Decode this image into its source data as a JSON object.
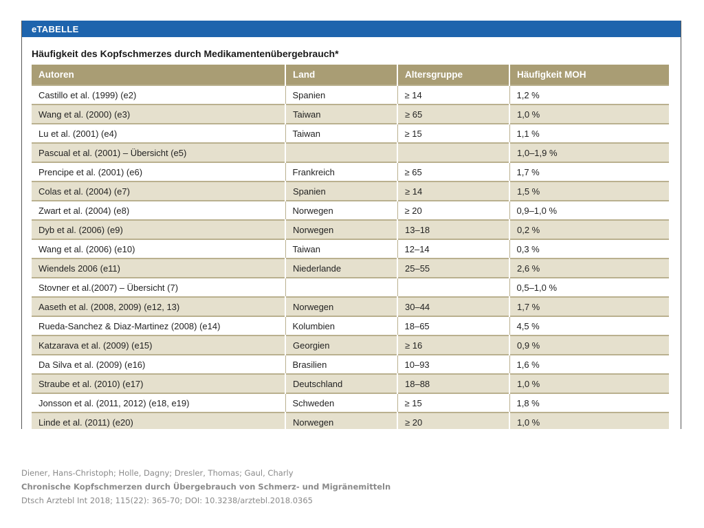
{
  "banner": "eTABELLE",
  "table_title": "Häufigkeit des Kopfschmerzes durch Medikamentenübergebrauch*",
  "columns": [
    "Autoren",
    "Land",
    "Altersgruppe",
    "Häufigkeit MOH"
  ],
  "rows": [
    [
      "Castillo et al. (1999) (e2)",
      "Spanien",
      "≥ 14",
      "1,2 %"
    ],
    [
      "Wang et al. (2000) (e3)",
      "Taiwan",
      "≥ 65",
      "1,0 %"
    ],
    [
      "Lu et al. (2001) (e4)",
      "Taiwan",
      "≥ 15",
      "1,1 %"
    ],
    [
      "Pascual et al. (2001) – Übersicht (e5)",
      "",
      "",
      "1,0–1,9 %"
    ],
    [
      "Prencipe et al. (2001) (e6)",
      "Frankreich",
      "≥ 65",
      "1,7 %"
    ],
    [
      "Colas et al. (2004) (e7)",
      "Spanien",
      "≥ 14",
      "1,5 %"
    ],
    [
      "Zwart et al. (2004) (e8)",
      "Norwegen",
      "≥ 20",
      "0,9–1,0 %"
    ],
    [
      "Dyb et al. (2006) (e9)",
      "Norwegen",
      "13–18",
      "0,2 %"
    ],
    [
      "Wang et al. (2006) (e10)",
      "Taiwan",
      "12–14",
      "0,3 %"
    ],
    [
      "Wiendels 2006 (e11)",
      "Niederlande",
      "25–55",
      "2,6 %"
    ],
    [
      "Stovner et al.(2007) – Übersicht (7)",
      "",
      "",
      "0,5–1,0 %"
    ],
    [
      "Aaseth et al. (2008, 2009) (e12, 13)",
      "Norwegen",
      "30–44",
      "1,7 %"
    ],
    [
      "Rueda-Sanchez & Diaz-Martinez (2008) (e14)",
      "Kolumbien",
      "18–65",
      "4,5 %"
    ],
    [
      "Katzarava et al. (2009) (e15)",
      "Georgien",
      "≥ 16",
      "0,9 %"
    ],
    [
      "Da Silva et al. (2009) (e16)",
      "Brasilien",
      "10–93",
      "1,6 %"
    ],
    [
      "Straube et al. (2010) (e17)",
      "Deutschland",
      "18–88",
      "1,0 %"
    ],
    [
      "Jonsson et al. (2011, 2012) (e18, e19)",
      "Schweden",
      "≥ 15",
      "1,8 %"
    ],
    [
      "Linde et al. (2011) (e20)",
      "Norwegen",
      "≥ 20",
      "1,0 %"
    ]
  ],
  "citation": {
    "authors": "Diener, Hans-Christoph; Holle, Dagny; Dresler, Thomas; Gaul, Charly",
    "title": "Chronische Kopfschmerzen durch Übergebrauch von Schmerz- und Migränemitteln",
    "source": "Dtsch Arztebl Int 2018; 115(22): 365-70; DOI: 10.3238/arztebl.2018.0365"
  }
}
